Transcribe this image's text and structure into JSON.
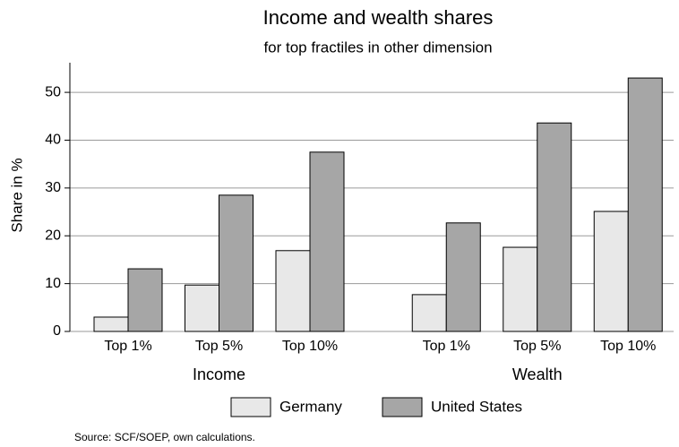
{
  "chart_data": {
    "type": "grouped-bar",
    "title": "Income and wealth shares",
    "subtitle": "for top fractiles in other dimension",
    "y_label": "Share in %",
    "groups": [
      {
        "name": "Income",
        "categories": [
          "Top 1%",
          "Top 5%",
          "Top 10%"
        ]
      },
      {
        "name": "Wealth",
        "categories": [
          "Top 1%",
          "Top 5%",
          "Top 10%"
        ]
      }
    ],
    "series": [
      {
        "name": "Germany",
        "color": "#e8e8e8",
        "values": [
          [
            3.0,
            9.7,
            16.9
          ],
          [
            7.7,
            17.6,
            25.1
          ]
        ]
      },
      {
        "name": "United States",
        "color": "#a6a6a6",
        "values": [
          [
            13.1,
            28.5,
            37.5
          ],
          [
            22.7,
            43.6,
            53.0
          ]
        ]
      }
    ],
    "ylim": [
      0,
      56.2
    ],
    "yticks": [
      0,
      10,
      20,
      30,
      40,
      50
    ],
    "grid": true,
    "note": "Source: SCF/SOEP, own calculations."
  }
}
